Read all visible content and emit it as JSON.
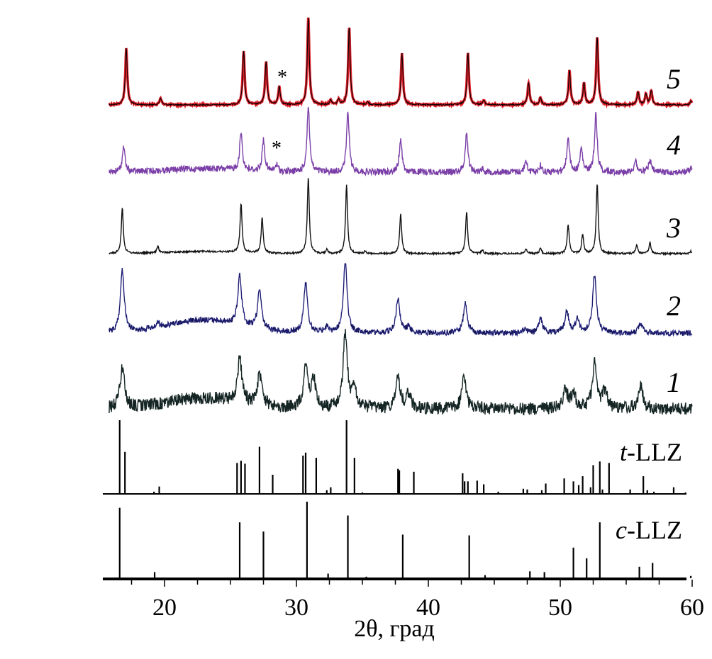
{
  "chart_data": {
    "type": "line",
    "xlabel": "2θ, град",
    "xlim": [
      15.5,
      60
    ],
    "x_ticks": [
      "20",
      "30",
      "40",
      "50",
      "60"
    ],
    "grid": false,
    "series": [
      {
        "name": "5",
        "color": "#e0202a",
        "peak_marker": "*",
        "peak_marker_at": 28.7,
        "peaks": [
          [
            17.1,
            65
          ],
          [
            19.7,
            8
          ],
          [
            26.0,
            61
          ],
          [
            27.7,
            49
          ],
          [
            28.7,
            21
          ],
          [
            30.9,
            100
          ],
          [
            32.6,
            5
          ],
          [
            33.2,
            6
          ],
          [
            34.0,
            89
          ],
          [
            35.4,
            3
          ],
          [
            38.0,
            58
          ],
          [
            43.0,
            59
          ],
          [
            44.2,
            5
          ],
          [
            47.6,
            25
          ],
          [
            48.5,
            8
          ],
          [
            50.7,
            39
          ],
          [
            51.8,
            25
          ],
          [
            52.8,
            77
          ],
          [
            55.9,
            15
          ],
          [
            56.5,
            12
          ],
          [
            56.9,
            16
          ],
          [
            59.9,
            4
          ]
        ]
      },
      {
        "name": "4",
        "color": "#7b3fa8",
        "peak_marker": "*",
        "peak_marker_at": 28.5,
        "peaks": [
          [
            16.9,
            38
          ],
          [
            25.8,
            58
          ],
          [
            27.5,
            47
          ],
          [
            28.5,
            10
          ],
          [
            30.9,
            100
          ],
          [
            33.9,
            91
          ],
          [
            37.9,
            51
          ],
          [
            42.9,
            60
          ],
          [
            44.1,
            5
          ],
          [
            47.4,
            17
          ],
          [
            48.5,
            10
          ],
          [
            50.6,
            53
          ],
          [
            51.6,
            35
          ],
          [
            52.7,
            88
          ],
          [
            55.7,
            18
          ],
          [
            56.8,
            18
          ],
          [
            59.9,
            6
          ]
        ]
      },
      {
        "name": "3",
        "color": "#111111",
        "peaks": [
          [
            16.8,
            60
          ],
          [
            19.5,
            8
          ],
          [
            25.8,
            64
          ],
          [
            27.4,
            46
          ],
          [
            30.9,
            100
          ],
          [
            32.3,
            5
          ],
          [
            33.8,
            89
          ],
          [
            35.2,
            3
          ],
          [
            37.9,
            52
          ],
          [
            42.9,
            55
          ],
          [
            44.1,
            5
          ],
          [
            47.4,
            7
          ],
          [
            48.5,
            7
          ],
          [
            50.6,
            38
          ],
          [
            51.7,
            25
          ],
          [
            52.8,
            91
          ],
          [
            55.8,
            11
          ],
          [
            56.8,
            14
          ],
          [
            59.9,
            3
          ]
        ]
      },
      {
        "name": "2",
        "color": "#2c2c9c",
        "peaks": [
          [
            16.8,
            88
          ],
          [
            19.5,
            6
          ],
          [
            25.7,
            70
          ],
          [
            27.2,
            55
          ],
          [
            30.7,
            70
          ],
          [
            32.3,
            8
          ],
          [
            33.7,
            100
          ],
          [
            37.7,
            50
          ],
          [
            38.5,
            8
          ],
          [
            42.8,
            42
          ],
          [
            47.3,
            5
          ],
          [
            48.5,
            20
          ],
          [
            50.5,
            30
          ],
          [
            51.3,
            20
          ],
          [
            52.6,
            82
          ],
          [
            56.1,
            15
          ]
        ]
      },
      {
        "name": "1",
        "color": "#142523",
        "peaks": [
          [
            16.8,
            55
          ],
          [
            25.7,
            60
          ],
          [
            27.2,
            42
          ],
          [
            30.7,
            58
          ],
          [
            31.3,
            38
          ],
          [
            33.7,
            100
          ],
          [
            34.4,
            25
          ],
          [
            37.7,
            40
          ],
          [
            38.5,
            20
          ],
          [
            42.7,
            42
          ],
          [
            50.4,
            25
          ],
          [
            51.0,
            22
          ],
          [
            52.6,
            62
          ],
          [
            53.4,
            25
          ],
          [
            56.1,
            30
          ]
        ]
      }
    ],
    "reference_patterns": [
      {
        "name_prefix": "t",
        "name_suffix": "-LLZ",
        "sticks": [
          [
            16.6,
            100
          ],
          [
            17.0,
            57
          ],
          [
            19.2,
            3
          ],
          [
            19.6,
            10
          ],
          [
            25.5,
            42
          ],
          [
            25.8,
            45
          ],
          [
            26.1,
            41
          ],
          [
            27.2,
            64
          ],
          [
            28.2,
            26
          ],
          [
            30.5,
            52
          ],
          [
            30.7,
            56
          ],
          [
            31.5,
            49
          ],
          [
            32.3,
            5
          ],
          [
            32.6,
            9
          ],
          [
            33.8,
            100
          ],
          [
            34.4,
            49
          ],
          [
            35.0,
            2
          ],
          [
            37.7,
            34
          ],
          [
            37.8,
            32
          ],
          [
            38.9,
            30
          ],
          [
            42.6,
            28
          ],
          [
            42.75,
            17
          ],
          [
            43.0,
            17
          ],
          [
            43.7,
            18
          ],
          [
            44.2,
            13
          ],
          [
            45.3,
            3
          ],
          [
            47.2,
            7
          ],
          [
            47.5,
            6
          ],
          [
            48.6,
            5
          ],
          [
            48.9,
            14
          ],
          [
            50.3,
            21
          ],
          [
            51.0,
            17
          ],
          [
            51.4,
            12
          ],
          [
            51.7,
            24
          ],
          [
            52.3,
            9
          ],
          [
            52.5,
            39
          ],
          [
            53.0,
            44
          ],
          [
            53.2,
            6
          ],
          [
            53.7,
            42
          ],
          [
            55.3,
            6
          ],
          [
            56.3,
            24
          ],
          [
            56.6,
            5
          ],
          [
            57.1,
            3
          ],
          [
            58.6,
            9
          ],
          [
            59.5,
            2
          ]
        ]
      },
      {
        "name_prefix": "c",
        "name_suffix": "-LLZ",
        "sticks": [
          [
            16.6,
            92
          ],
          [
            19.25,
            8
          ],
          [
            25.7,
            73
          ],
          [
            27.5,
            61
          ],
          [
            30.8,
            100
          ],
          [
            32.4,
            6
          ],
          [
            33.9,
            82
          ],
          [
            35.3,
            2
          ],
          [
            38.06,
            57
          ],
          [
            43.1,
            56
          ],
          [
            44.3,
            4
          ],
          [
            47.7,
            9
          ],
          [
            48.8,
            8
          ],
          [
            51.0,
            40
          ],
          [
            52.0,
            26
          ],
          [
            53.0,
            73
          ],
          [
            56.0,
            15
          ],
          [
            57.0,
            20
          ],
          [
            59.9,
            3
          ]
        ]
      }
    ]
  }
}
